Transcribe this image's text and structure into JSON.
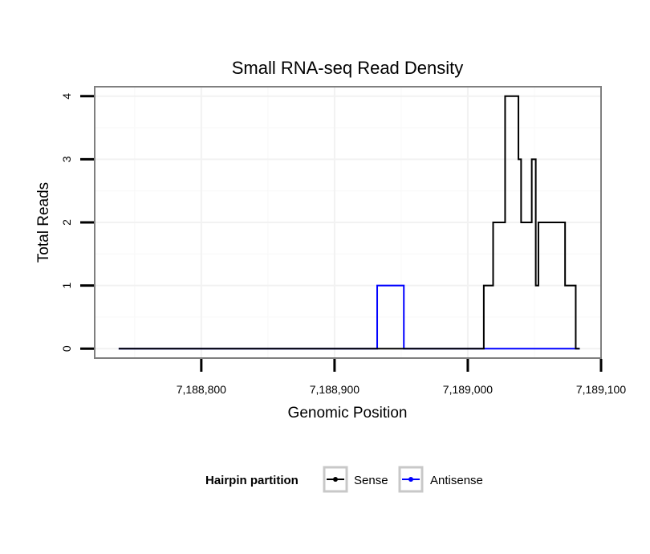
{
  "chart_data": {
    "type": "line",
    "title": "Small RNA-seq Read Density",
    "xlabel": "Genomic Position",
    "ylabel": "Total Reads",
    "xlim": [
      7188720,
      7189100
    ],
    "ylim": [
      -0.15,
      4.15
    ],
    "x_ticks": [
      7188800,
      7188900,
      7189000,
      7189100
    ],
    "x_tick_labels": [
      "7,188,800",
      "7,188,900",
      "7,189,000",
      "7,189,100"
    ],
    "y_ticks": [
      0,
      1,
      2,
      3,
      4
    ],
    "y_tick_labels": [
      "0",
      "1",
      "2",
      "3",
      "4"
    ],
    "grid": true,
    "legend": {
      "title": "Hairpin partition",
      "position": "bottom",
      "entries": [
        "Sense",
        "Antisense"
      ]
    },
    "series": [
      {
        "name": "Antisense",
        "color": "#0000ff",
        "x": [
          7188738,
          7188932,
          7188932,
          7188952,
          7188952,
          7189084
        ],
        "y": [
          0,
          0,
          1,
          1,
          0,
          0
        ]
      },
      {
        "name": "Sense",
        "color": "#000000",
        "x": [
          7188738,
          7189012,
          7189012,
          7189019,
          7189019,
          7189028,
          7189028,
          7189038,
          7189038,
          7189040,
          7189040,
          7189041,
          7189041,
          7189048,
          7189048,
          7189051,
          7189051,
          7189053,
          7189053,
          7189055,
          7189055,
          7189073,
          7189073,
          7189081,
          7189081,
          7189084
        ],
        "y": [
          0,
          0,
          1,
          1,
          2,
          2,
          4,
          4,
          3,
          3,
          2,
          2,
          2,
          2,
          3,
          3,
          1,
          1,
          2,
          2,
          2,
          2,
          1,
          1,
          0,
          0
        ]
      }
    ]
  }
}
